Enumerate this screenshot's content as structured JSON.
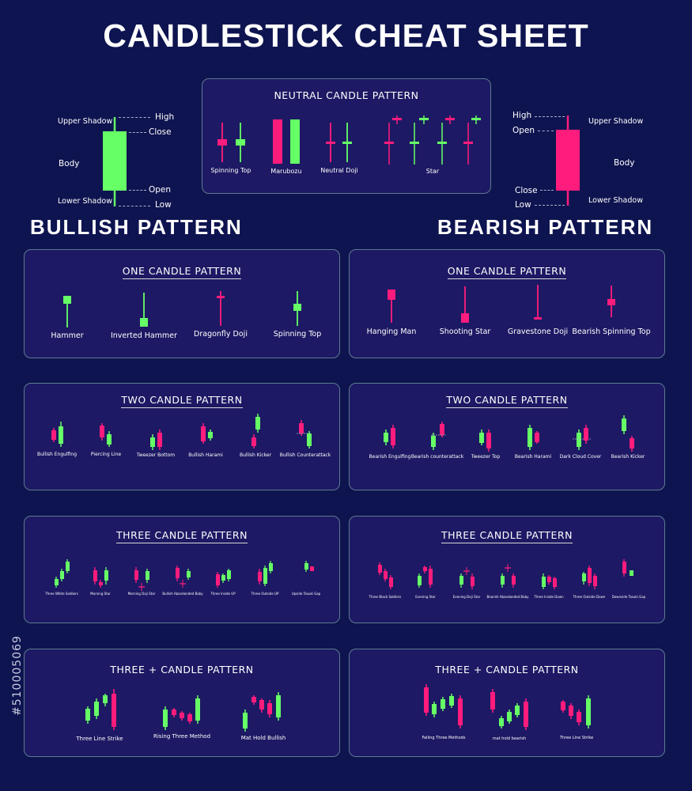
{
  "title": "CANDLESTICK CHEAT SHEET",
  "colors": {
    "bull": "#66ff66",
    "bear": "#ff1c7c",
    "background": "#0e1450",
    "panel": "#1d1964",
    "border": "#5d7a8e"
  },
  "bull_anatomy": {
    "upper_shadow": "Upper Shadow",
    "high": "High",
    "close": "Close",
    "body": "Body",
    "open": "Open",
    "lower_shadow": "Lower Shadow",
    "low": "Low"
  },
  "bear_anatomy": {
    "high": "High",
    "upper_shadow": "Upper Shadow",
    "open": "Open",
    "body": "Body",
    "close": "Close",
    "low": "Low",
    "lower_shadow": "Lower Shadow"
  },
  "neutral": {
    "title": "NEUTRAL CANDLE PATTERN",
    "labels": [
      "Spinning Top",
      "Marubozu",
      "Neutral Doji",
      "Star"
    ]
  },
  "bullish_heading": "BULLISH PATTERN",
  "bearish_heading": "BEARISH PATTERN",
  "bullish": {
    "one": {
      "title": "ONE CANDLE PATTERN",
      "labels": [
        "Hammer",
        "Inverted Hammer",
        "Dragonfly Doji",
        "Spinning Top"
      ]
    },
    "two": {
      "title": "TWO CANDLE PATTERN",
      "labels": [
        "Bullish Engulfing",
        "Piercing Line",
        "Tweezer Bottom",
        "Bullish Harami",
        "Bullish Kicker",
        "Bullish Counterattack"
      ]
    },
    "three": {
      "title": "THREE  CANDLE PATTERN",
      "labels": [
        "Three White Soldiers",
        "Morning Star",
        "Morning Doji Star",
        "Bullish Abandonded Baby",
        "Three Inside UP",
        "Three Outside UP",
        "Upside Tasuki Gap"
      ]
    },
    "plus": {
      "title": "THREE + CANDLE PATTERN",
      "labels": [
        "Three Line Strike",
        "Rising Three Method",
        "Mat Hold Bullish"
      ]
    }
  },
  "bearish": {
    "one": {
      "title": "ONE CANDLE PATTERN",
      "labels": [
        "Hanging Man",
        "Shooting Star",
        "Gravestone Doji",
        "Bearish Spinning Top"
      ]
    },
    "two": {
      "title": "TWO CANDLE PATTERN",
      "labels": [
        "Bearish Engulfing",
        "Bearish counterattack",
        "Tweezer Top",
        "Bearish Harami",
        "Dark Cloud Cover",
        "Bearish Kicker"
      ]
    },
    "three": {
      "title": "THREE  CANDLE PATTERN",
      "labels": [
        "Three Black Soldiers",
        "Evening Star",
        "Evening Doji Star",
        "Bearish Abandonded Baby",
        "Three Inside Down",
        "Three Outside Down",
        "Downside Tasuki Gap"
      ]
    },
    "plus": {
      "title": "THREE + CANDLE PATTERN",
      "labels": [
        "Falling Three Methods",
        "mat hold bearish",
        "Three Line Strike"
      ]
    }
  },
  "watermark": "#510005069"
}
